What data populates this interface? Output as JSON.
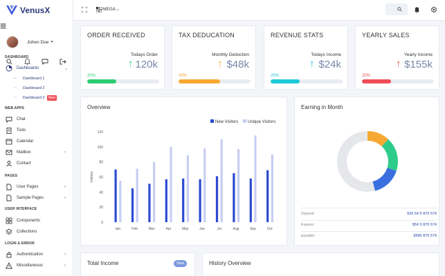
{
  "brand": {
    "name": "VenusX"
  },
  "user": {
    "name": "Johen Doe"
  },
  "sidebar": {
    "sections": [
      {
        "title": "DASHBOARD"
      },
      {
        "title": "WEB APPS"
      },
      {
        "title": "PAGES"
      },
      {
        "title": "USER INTERFACE"
      },
      {
        "title": "LOGIN & ERROR"
      }
    ],
    "dashboards": {
      "label": "Dashboards"
    },
    "sub_items": [
      {
        "label": "Dashboard 1",
        "mark": "→"
      },
      {
        "label": "Dashboard 2",
        "mark": "···"
      },
      {
        "label": "Dashboard 3",
        "mark": "···",
        "badge": "New"
      }
    ],
    "web_apps": [
      {
        "label": "Chat"
      },
      {
        "label": "Todo"
      },
      {
        "label": "Calendar"
      },
      {
        "label": "Mailbox"
      },
      {
        "label": "Contact"
      }
    ],
    "pages": [
      {
        "label": "User Pages"
      },
      {
        "label": "Sample Pages"
      }
    ],
    "ui": [
      {
        "label": "Components"
      },
      {
        "label": "Collections"
      }
    ],
    "login": [
      {
        "label": "Authentication"
      },
      {
        "label": "Miscellaneous"
      }
    ]
  },
  "topbar": {
    "mega_label": "MEGA"
  },
  "stats": [
    {
      "title": "ORDER RECEIVED",
      "sub": "Todays Order",
      "value": "120k",
      "percent_label": "20%",
      "percent": 0.4,
      "color": "#2ecc71",
      "arrow": "↑"
    },
    {
      "title": "TAX DEDUCATION",
      "sub": "Monthly Deduction",
      "value": "$48k",
      "percent_label": "40%",
      "percent": 0.58,
      "color": "#f7a833",
      "arrow": "↑"
    },
    {
      "title": "REVENUE STATS",
      "sub": "Todays Income",
      "value": "$24k",
      "percent_label": "20%",
      "percent": 0.4,
      "color": "#1fc8d6",
      "arrow": "↑"
    },
    {
      "title": "YEARLY SALES",
      "sub": "Yearly Income",
      "value": "$155k",
      "percent_label": "20%",
      "percent": 0.4,
      "color": "#ef4d56",
      "arrow": "↑"
    }
  ],
  "overview": {
    "title": "Overview"
  },
  "chart_data": {
    "type": "bar",
    "categories": [
      "Jan",
      "Feb",
      "Mar",
      "Apr",
      "May",
      "Jun",
      "Jul",
      "Aug",
      "Sep",
      "Oct"
    ],
    "series": [
      {
        "name": "New Visitors",
        "color": "#2c4ad1",
        "values": [
          70,
          45,
          51,
          57,
          58,
          57,
          61,
          65,
          58,
          69
        ]
      },
      {
        "name": "Unique Visitors",
        "color": "#c7cdf2",
        "values": [
          55,
          71,
          80,
          100,
          89,
          98,
          110,
          97,
          115,
          90
        ]
      }
    ],
    "ylabel": "Visitors",
    "ylim": [
      0,
      120
    ],
    "yticks": [
      0,
      20,
      40,
      60,
      80,
      100,
      120
    ],
    "legend": "top-right"
  },
  "earnings": {
    "title": "Earning in Month",
    "donut": [
      {
        "value": 12,
        "color": "#f7a833"
      },
      {
        "value": 18,
        "color": "#2ecc8a"
      },
      {
        "value": 16,
        "color": "#3a6fe0"
      },
      {
        "value": 54,
        "color": "#e5e7eb"
      }
    ],
    "rows": [
      {
        "label": "Deposit :",
        "value": "$20 54 5 875 574"
      },
      {
        "label": "Expese:",
        "value": "$54 5 875 574"
      },
      {
        "label": "payable:",
        "value": "$985 875 574"
      }
    ]
  },
  "total_income": {
    "title": "Total Income",
    "badge": "Stats"
  },
  "history": {
    "title": "History Overview"
  }
}
